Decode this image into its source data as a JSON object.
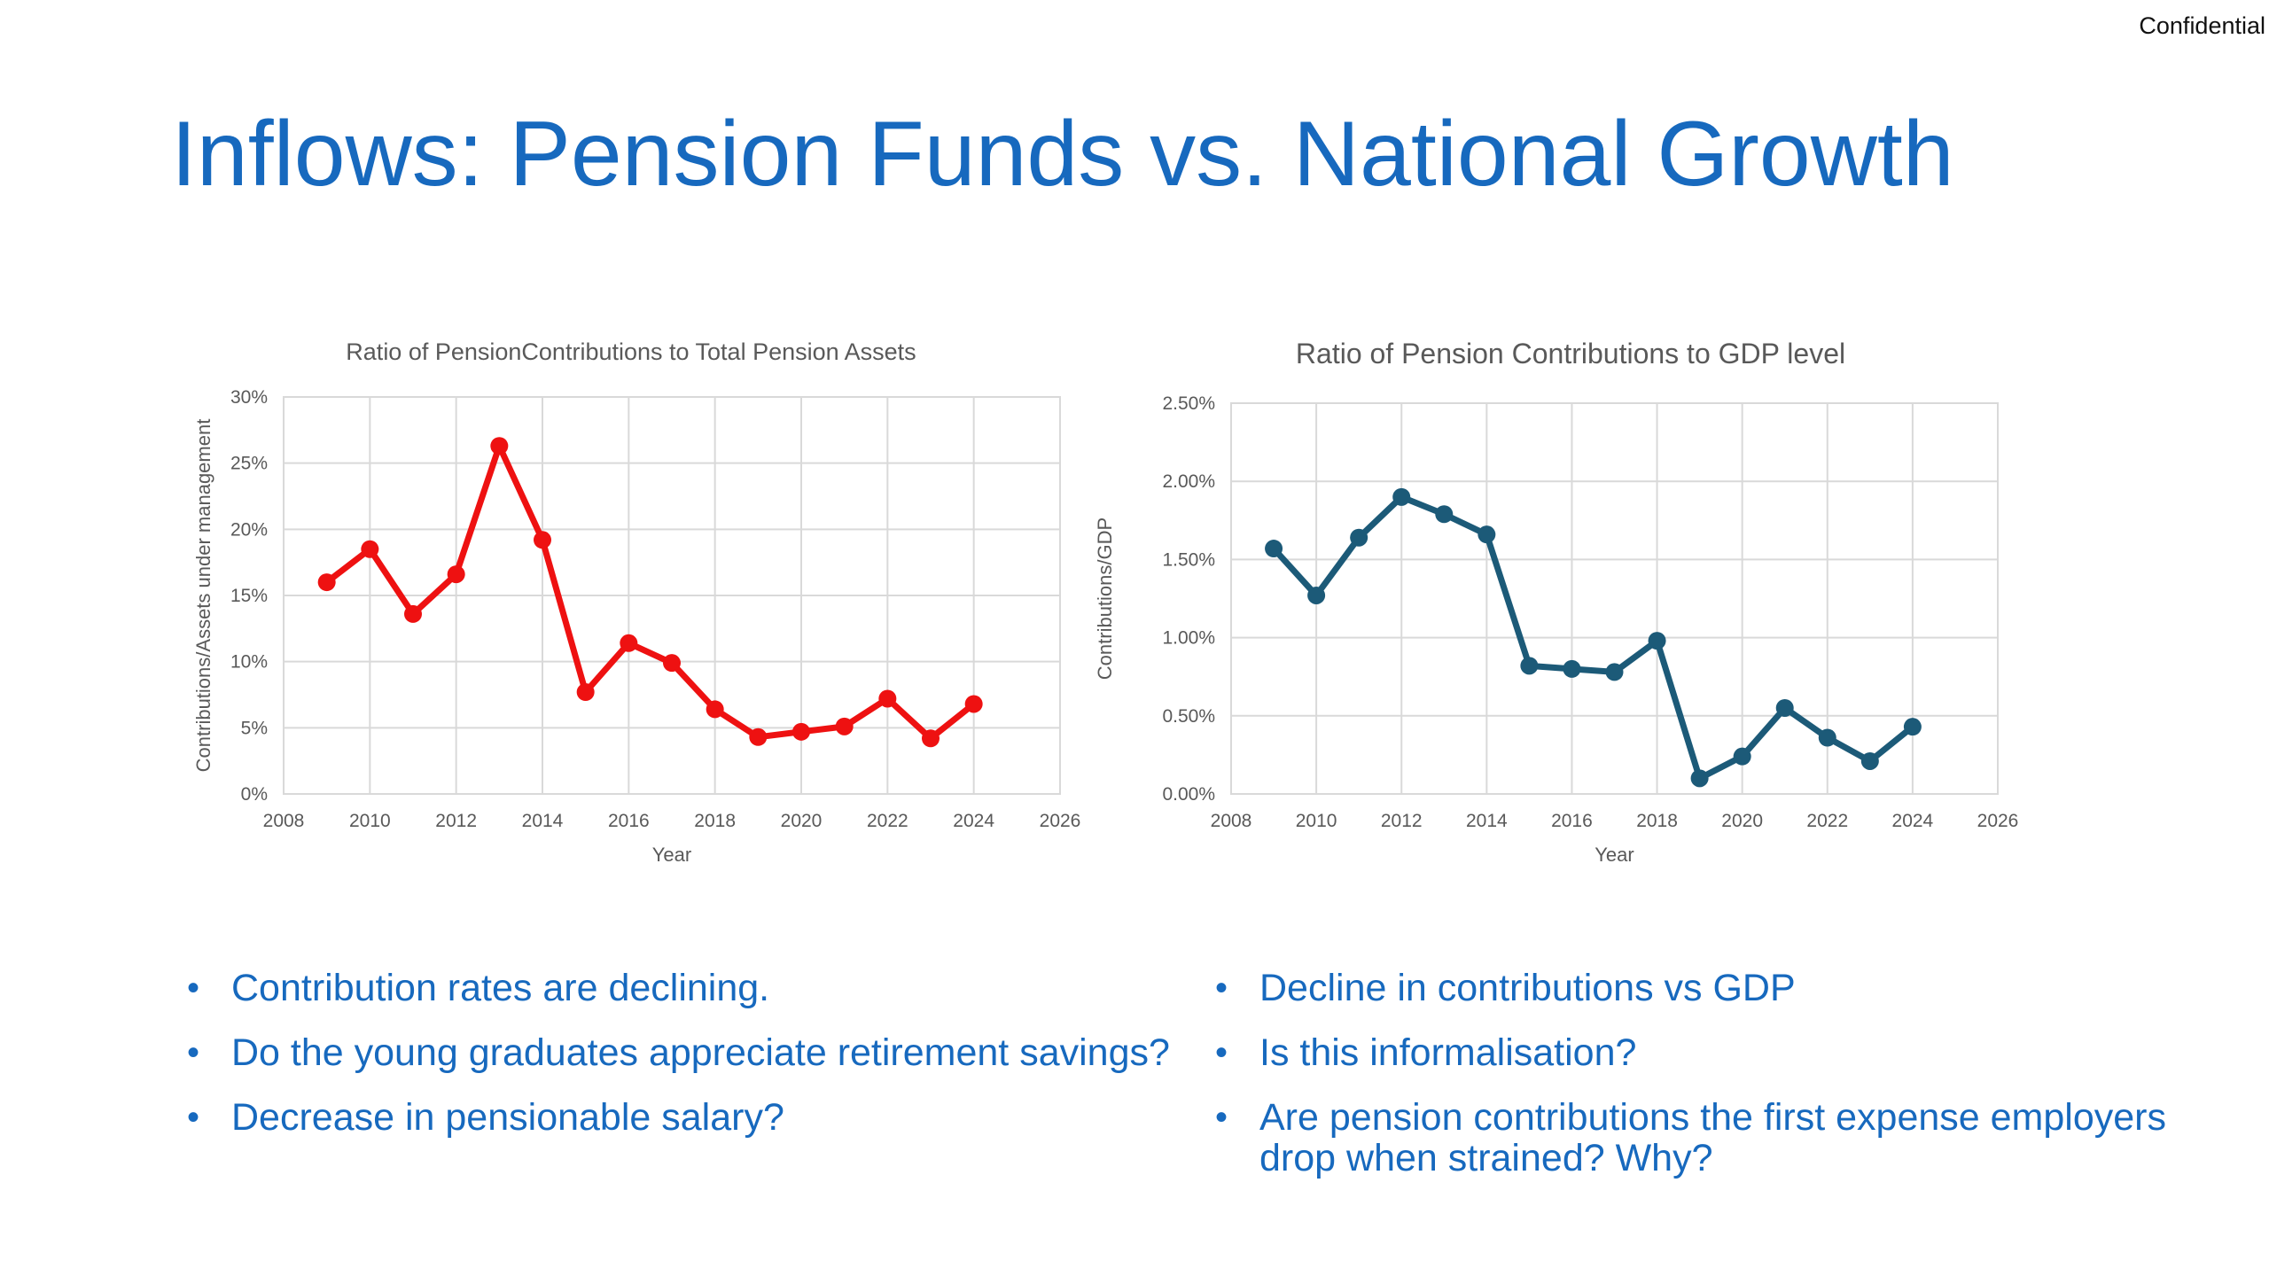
{
  "header": {
    "confidential": "Confidential",
    "title": "Inflows: Pension Funds vs. National Growth"
  },
  "colors": {
    "title": "#1769be",
    "left_series": "#ee1111",
    "right_series": "#1c5a78",
    "grid": "#d9d9d9"
  },
  "chart_data": [
    {
      "type": "line",
      "title": "Ratio of PensionContributions to Total Pension Assets",
      "xlabel": "Year",
      "ylabel": "Contributions/Assets under management",
      "xlim": [
        2008,
        2026
      ],
      "ylim": [
        0,
        30
      ],
      "x_ticks": [
        "2008",
        "2010",
        "2012",
        "2014",
        "2016",
        "2018",
        "2020",
        "2022",
        "2024",
        "2026"
      ],
      "y_ticks": [
        "0%",
        "5%",
        "10%",
        "15%",
        "20%",
        "25%",
        "30%"
      ],
      "grid": true,
      "color": "#ee1111",
      "unit": "%",
      "x": [
        2009,
        2010,
        2011,
        2012,
        2013,
        2014,
        2015,
        2016,
        2017,
        2018,
        2019,
        2020,
        2021,
        2022,
        2023,
        2024
      ],
      "values": [
        16.0,
        18.5,
        13.6,
        16.6,
        26.3,
        19.2,
        7.7,
        11.4,
        9.9,
        6.4,
        4.3,
        4.7,
        5.1,
        7.2,
        4.2,
        6.8
      ]
    },
    {
      "type": "line",
      "title": "Ratio of Pension Contributions to GDP level",
      "xlabel": "Year",
      "ylabel": "Contributions/GDP",
      "xlim": [
        2008,
        2026
      ],
      "ylim": [
        0,
        2.5
      ],
      "x_ticks": [
        "2008",
        "2010",
        "2012",
        "2014",
        "2016",
        "2018",
        "2020",
        "2022",
        "2024",
        "2026"
      ],
      "y_ticks": [
        "0.00%",
        "0.50%",
        "1.00%",
        "1.50%",
        "2.00%",
        "2.50%"
      ],
      "grid": true,
      "color": "#1c5a78",
      "unit": "%",
      "x": [
        2009,
        2010,
        2011,
        2012,
        2013,
        2014,
        2015,
        2016,
        2017,
        2018,
        2019,
        2020,
        2021,
        2022,
        2023,
        2024
      ],
      "values": [
        1.57,
        1.27,
        1.64,
        1.9,
        1.79,
        1.66,
        0.82,
        0.8,
        0.78,
        0.98,
        0.1,
        0.24,
        0.55,
        0.36,
        0.21,
        0.43
      ]
    }
  ],
  "bullets": {
    "left": [
      "Contribution rates are declining.",
      "Do the young graduates appreciate retirement savings?",
      "Decrease in pensionable salary?"
    ],
    "right": [
      "Decline in contributions vs GDP",
      "Is this informalisation?",
      "Are pension contributions the first expense employers drop when strained? Why?"
    ],
    "marker": "•"
  }
}
